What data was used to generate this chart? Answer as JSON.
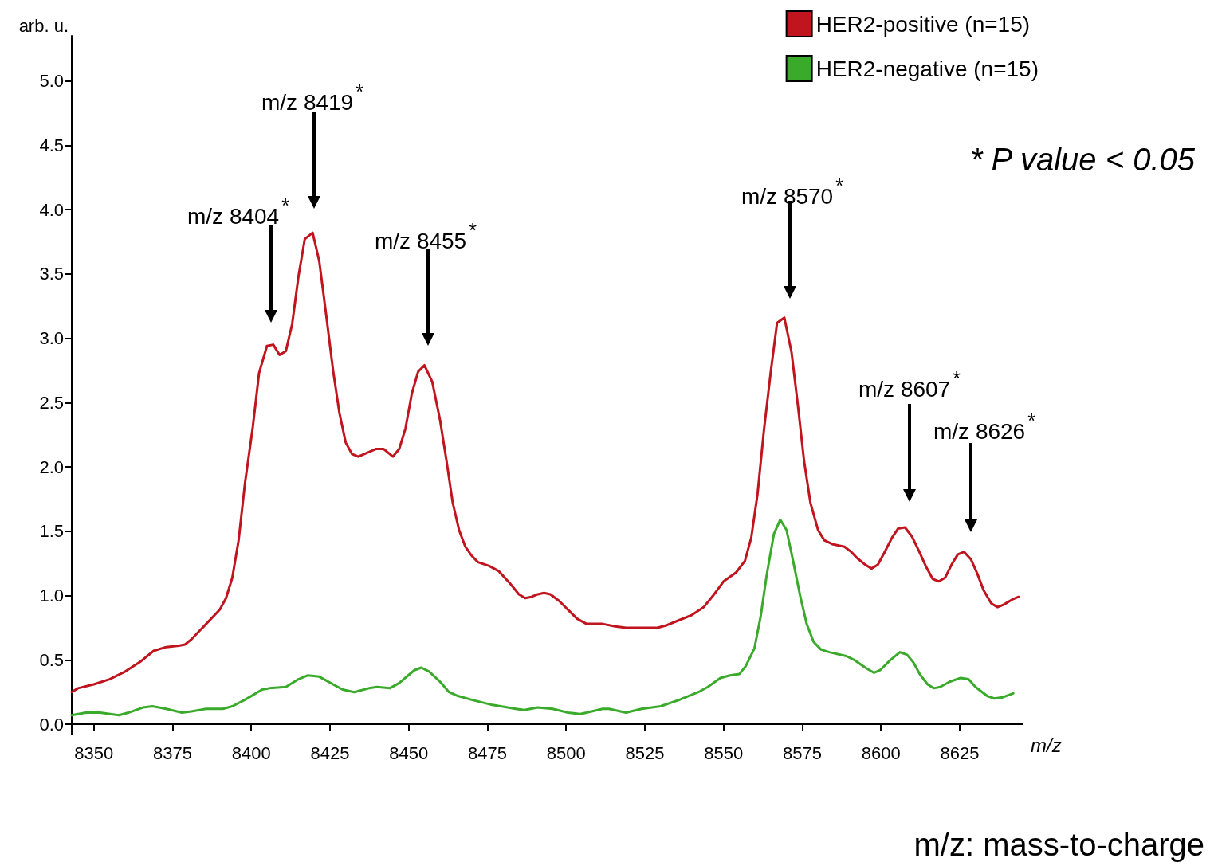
{
  "chart_data": {
    "type": "line",
    "xlabel": "m/z",
    "ylabel": "arb. u.",
    "xlim": [
      8343,
      8645
    ],
    "xticks": [
      8350,
      8375,
      8400,
      8425,
      8450,
      8475,
      8500,
      8525,
      8550,
      8575,
      8600,
      8625
    ],
    "ylim": [
      -0.08,
      5.35
    ],
    "yticks": [
      {
        "value": 0,
        "label": "0.0"
      },
      {
        "value": 0.5,
        "label": "0.5"
      },
      {
        "value": 1,
        "label": "1.0"
      },
      {
        "value": 1.5,
        "label": "1.5"
      },
      {
        "value": 2,
        "label": "2.0"
      },
      {
        "value": 2.5,
        "label": "2.5"
      },
      {
        "value": 3,
        "label": "3.0"
      },
      {
        "value": 3.5,
        "label": "3.5"
      },
      {
        "value": 4,
        "label": "4.0"
      },
      {
        "value": 4.5,
        "label": "4.5"
      },
      {
        "value": 5,
        "label": "5.0"
      }
    ],
    "grid": false,
    "legend": "top right",
    "marker": "none",
    "line_style": "solid",
    "series": [
      {
        "name": "HER2-positive (n=15)",
        "color": "#c0141e",
        "x": [
          8343,
          8345,
          8350,
          8355,
          8360,
          8365,
          8369,
          8373,
          8377,
          8379,
          8381,
          8390,
          8392,
          8394,
          8396,
          8398,
          8400.5,
          8402.5,
          8405,
          8407,
          8409,
          8411,
          8413,
          8415,
          8417,
          8419.5,
          8421.6,
          8423.6,
          8426,
          8428,
          8430,
          8432,
          8434,
          8439.7,
          8442,
          8445,
          8447,
          8449,
          8451,
          8453,
          8455,
          8457.5,
          8460,
          8462,
          8464,
          8466,
          8468,
          8470,
          8472,
          8475.6,
          8478.6,
          8482,
          8485,
          8487,
          8489,
          8491,
          8493,
          8495,
          8497.7,
          8500.6,
          8503.5,
          8506.5,
          8511.6,
          8515.6,
          8519,
          8523,
          8529,
          8532,
          8536,
          8540,
          8543.7,
          8546.7,
          8550,
          8554,
          8556.8,
          8558.8,
          8560.8,
          8562.8,
          8565,
          8567,
          8569.3,
          8571.6,
          8573.6,
          8575.6,
          8577.6,
          8580,
          8582,
          8584.5,
          8588.4,
          8590.5,
          8592.5,
          8595,
          8597,
          8599,
          8601,
          8603.5,
          8605.4,
          8607.6,
          8609.8,
          8612,
          8614.4,
          8616.4,
          8618.4,
          8620.4,
          8622.4,
          8624.4,
          8626.4,
          8628.6,
          8630.6,
          8632.6,
          8635,
          8637,
          8639,
          8641.7,
          8643.7
        ],
        "values": [
          0.25,
          0.28,
          0.31,
          0.35,
          0.41,
          0.49,
          0.57,
          0.6,
          0.61,
          0.62,
          0.66,
          0.89,
          0.98,
          1.14,
          1.43,
          1.87,
          2.31,
          2.73,
          2.94,
          2.95,
          2.87,
          2.9,
          3.11,
          3.48,
          3.77,
          3.82,
          3.6,
          3.22,
          2.75,
          2.42,
          2.19,
          2.1,
          2.08,
          2.14,
          2.14,
          2.08,
          2.14,
          2.3,
          2.57,
          2.74,
          2.79,
          2.66,
          2.36,
          2.05,
          1.72,
          1.51,
          1.38,
          1.31,
          1.26,
          1.23,
          1.19,
          1.1,
          1.01,
          0.98,
          0.99,
          1.01,
          1.02,
          1.01,
          0.96,
          0.89,
          0.82,
          0.78,
          0.78,
          0.76,
          0.75,
          0.75,
          0.75,
          0.77,
          0.81,
          0.85,
          0.91,
          1.0,
          1.11,
          1.18,
          1.27,
          1.45,
          1.79,
          2.28,
          2.74,
          3.12,
          3.16,
          2.89,
          2.48,
          2.04,
          1.72,
          1.51,
          1.43,
          1.4,
          1.38,
          1.34,
          1.29,
          1.24,
          1.21,
          1.24,
          1.33,
          1.45,
          1.52,
          1.53,
          1.46,
          1.35,
          1.22,
          1.13,
          1.11,
          1.14,
          1.24,
          1.32,
          1.34,
          1.28,
          1.17,
          1.04,
          0.94,
          0.91,
          0.93,
          0.97,
          0.99
        ]
      },
      {
        "name": "HER2-negative (n=15)",
        "color": "#3aaa2a",
        "x": [
          8343,
          8347.5,
          8352,
          8358,
          8361,
          8365.6,
          8368.6,
          8373,
          8378,
          8381,
          8385.7,
          8391,
          8394,
          8398,
          8403.5,
          8405.8,
          8411,
          8415,
          8418,
          8421.6,
          8426,
          8429,
          8432.7,
          8437.4,
          8440,
          8444,
          8447,
          8451.8,
          8454,
          8456.5,
          8460,
          8462.8,
          8465.6,
          8470,
          8476.6,
          8484,
          8486.7,
          8491,
          8495.7,
          8500.6,
          8504.5,
          8506.5,
          8511.6,
          8513.6,
          8519,
          8524,
          8530,
          8536,
          8542,
          8545,
          8549,
          8552,
          8555,
          8557,
          8559.8,
          8561.8,
          8563.7,
          8566,
          8568,
          8570,
          8572,
          8574.4,
          8576.4,
          8578.6,
          8581,
          8583.6,
          8589,
          8591.5,
          8595,
          8597.8,
          8599.7,
          8603,
          8606,
          8608.3,
          8610.3,
          8612.3,
          8614.8,
          8616.8,
          8618.8,
          8621.8,
          8625.3,
          8627.8,
          8630,
          8633.7,
          8636,
          8638.7,
          8642
        ],
        "values": [
          0.07,
          0.09,
          0.09,
          0.07,
          0.09,
          0.13,
          0.14,
          0.12,
          0.09,
          0.1,
          0.12,
          0.12,
          0.14,
          0.19,
          0.27,
          0.28,
          0.29,
          0.35,
          0.38,
          0.37,
          0.31,
          0.27,
          0.25,
          0.28,
          0.29,
          0.28,
          0.32,
          0.42,
          0.44,
          0.41,
          0.33,
          0.25,
          0.22,
          0.19,
          0.15,
          0.12,
          0.11,
          0.13,
          0.12,
          0.09,
          0.08,
          0.09,
          0.12,
          0.12,
          0.09,
          0.12,
          0.14,
          0.19,
          0.25,
          0.29,
          0.36,
          0.38,
          0.39,
          0.45,
          0.59,
          0.84,
          1.16,
          1.48,
          1.59,
          1.51,
          1.28,
          0.99,
          0.78,
          0.64,
          0.58,
          0.56,
          0.53,
          0.5,
          0.44,
          0.4,
          0.42,
          0.5,
          0.56,
          0.54,
          0.48,
          0.39,
          0.31,
          0.28,
          0.29,
          0.33,
          0.36,
          0.35,
          0.29,
          0.22,
          0.2,
          0.21,
          0.24
        ]
      }
    ],
    "annotations": [
      "m/z 8404$^{*}$",
      "m/z 8419$^{*}$",
      "m/z 8455$^{*}$",
      "m/z 8570$^{*}$",
      "m/z 8607$^{*}$",
      "m/z 8626$^{*}$",
      "* P value < 0.05",
      "m/z: mass-to-charge"
    ]
  }
}
